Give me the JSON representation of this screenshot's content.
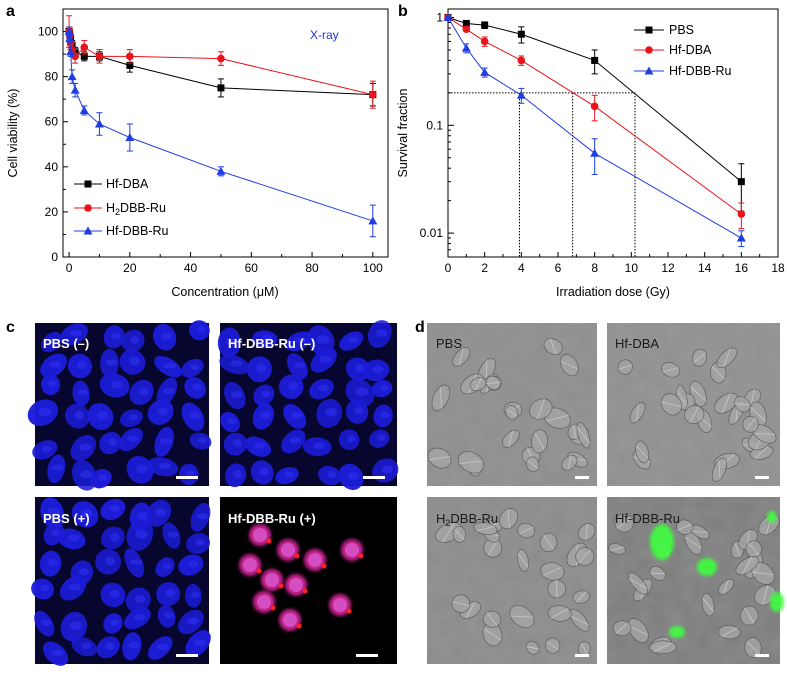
{
  "panels": {
    "a": "a",
    "b": "b",
    "c": "c",
    "d": "d"
  },
  "colors": {
    "black": "#000000",
    "red": "#e8141b",
    "blue": "#1f3de0",
    "xray": "#2233dd"
  },
  "chart_data": [
    {
      "type": "line",
      "panel": "a",
      "annotation": "X-ray",
      "xlabel": "Concentration (μM)",
      "ylabel": "Cell viability (%)",
      "xlim": [
        -2,
        105
      ],
      "ylim": [
        0,
        110
      ],
      "xticks": [
        0,
        20,
        40,
        60,
        80,
        100
      ],
      "yticks": [
        0,
        20,
        40,
        60,
        80,
        100
      ],
      "legend_position": "bottom-left",
      "series": [
        {
          "name": "Hf-DBA",
          "marker": "square",
          "color": "#000000",
          "x": [
            0,
            0.2,
            0.5,
            1,
            2,
            5,
            10,
            20,
            50,
            100
          ],
          "y": [
            100,
            99,
            97,
            94,
            91,
            89,
            89,
            85,
            75,
            72
          ],
          "err": [
            2,
            2,
            2,
            2,
            2,
            2,
            2,
            3,
            4,
            5
          ]
        },
        {
          "name": "H2DBB-Ru",
          "marker": "circle",
          "color": "#e8141b",
          "x": [
            0,
            0.2,
            0.5,
            1,
            2,
            5,
            10,
            20,
            50,
            100
          ],
          "y": [
            100,
            98,
            95,
            92,
            89,
            93,
            89,
            89,
            88,
            72
          ],
          "err": [
            7,
            4,
            3,
            3,
            3,
            3,
            3,
            3,
            3,
            6
          ]
        },
        {
          "name": "Hf-DBB-Ru",
          "marker": "triangle",
          "color": "#1f3de0",
          "x": [
            0,
            0.2,
            0.5,
            1,
            2,
            5,
            10,
            20,
            50,
            100
          ],
          "y": [
            100,
            97,
            91,
            80,
            74,
            65,
            59,
            53,
            38,
            16
          ],
          "err": [
            2,
            2,
            2,
            3,
            3,
            2,
            5,
            6,
            2,
            7
          ]
        }
      ]
    },
    {
      "type": "line",
      "panel": "b",
      "xlabel": "Irradiation dose (Gy)",
      "ylabel": "Survival fraction",
      "xscale": "linear",
      "yscale": "log",
      "xlim": [
        0,
        18
      ],
      "ylim": [
        0.006,
        1.2
      ],
      "xticks": [
        0,
        2,
        4,
        6,
        8,
        10,
        12,
        14,
        16,
        18
      ],
      "yticks": [
        0.01,
        0.1,
        1
      ],
      "ytick_labels": [
        "0.01",
        "0.1",
        "1"
      ],
      "legend_position": "top-right",
      "guide_level": 0.2,
      "guide_x": [
        3.9,
        6.8,
        10.2
      ],
      "series": [
        {
          "name": "PBS",
          "marker": "square",
          "color": "#000000",
          "x": [
            0,
            1,
            2,
            4,
            8,
            16
          ],
          "y": [
            1,
            0.88,
            0.85,
            0.7,
            0.4,
            0.03
          ],
          "err": [
            0.03,
            0.06,
            0.06,
            0.12,
            0.1,
            0.014
          ]
        },
        {
          "name": "Hf-DBA",
          "marker": "circle",
          "color": "#e8141b",
          "x": [
            0,
            1,
            2,
            4,
            8,
            16
          ],
          "y": [
            1,
            0.78,
            0.6,
            0.4,
            0.15,
            0.015
          ],
          "err": [
            0.03,
            0.04,
            0.06,
            0.04,
            0.04,
            0.004
          ]
        },
        {
          "name": "Hf-DBB-Ru",
          "marker": "triangle",
          "color": "#1f3de0",
          "x": [
            0,
            1,
            2,
            4,
            8,
            16
          ],
          "y": [
            1,
            0.52,
            0.31,
            0.19,
            0.055,
            0.009
          ],
          "err": [
            0.03,
            0.05,
            0.03,
            0.03,
            0.02,
            0.0015
          ]
        }
      ]
    }
  ],
  "images_c": [
    {
      "label": "PBS (–)",
      "kind": "nuclei-dense"
    },
    {
      "label": "Hf-DBB-Ru (–)",
      "kind": "nuclei-dense"
    },
    {
      "label": "PBS (+)",
      "kind": "nuclei-dense"
    },
    {
      "label": "Hf-DBB-Ru (+)",
      "kind": "nuclei-sparse"
    }
  ],
  "images_d": [
    {
      "label": "PBS",
      "kind": "dic"
    },
    {
      "label": "Hf-DBA",
      "kind": "dic"
    },
    {
      "label": "H2DBB-Ru",
      "kind": "dic"
    },
    {
      "label": "Hf-DBB-Ru",
      "kind": "dic-green"
    }
  ]
}
